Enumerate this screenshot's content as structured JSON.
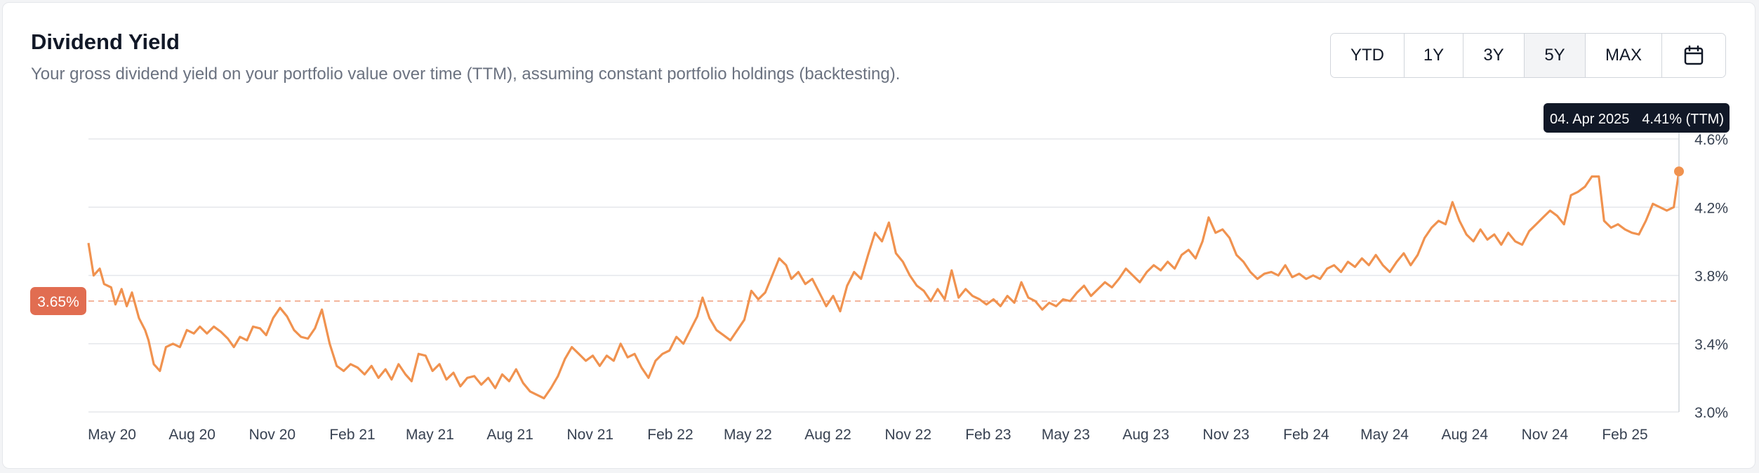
{
  "header": {
    "title": "Dividend Yield",
    "subtitle": "Your gross dividend yield on your portfolio value over time (TTM), assuming constant portfolio holdings (backtesting)."
  },
  "range_buttons": [
    {
      "label": "YTD",
      "active": false
    },
    {
      "label": "1Y",
      "active": false
    },
    {
      "label": "3Y",
      "active": false
    },
    {
      "label": "5Y",
      "active": true
    },
    {
      "label": "MAX",
      "active": false
    }
  ],
  "calendar_icon": "calendar-icon",
  "tooltip": {
    "date": "04. Apr 2025",
    "value": "4.41% (TTM)"
  },
  "average_badge": "3.65%",
  "colors": {
    "line": "#f0924f",
    "badge": "#e16d51",
    "tooltip_bg": "#111827",
    "grid": "#e5e7eb"
  },
  "chart_data": {
    "type": "line",
    "title": "Dividend Yield",
    "ylim": [
      3.0,
      4.6
    ],
    "y_ticks": [
      "3.0%",
      "3.4%",
      "3.8%",
      "4.2%",
      "4.6%"
    ],
    "y_tick_values": [
      3.0,
      3.4,
      3.8,
      4.2,
      4.6
    ],
    "x_range": [
      "2020-04-04",
      "2025-04-04"
    ],
    "x_ticks": [
      {
        "date": "2020-05-01",
        "label": "May 20"
      },
      {
        "date": "2020-08-01",
        "label": "Aug 20"
      },
      {
        "date": "2020-11-01",
        "label": "Nov 20"
      },
      {
        "date": "2021-02-01",
        "label": "Feb 21"
      },
      {
        "date": "2021-05-01",
        "label": "May 21"
      },
      {
        "date": "2021-08-01",
        "label": "Aug 21"
      },
      {
        "date": "2021-11-01",
        "label": "Nov 21"
      },
      {
        "date": "2022-02-01",
        "label": "Feb 22"
      },
      {
        "date": "2022-05-01",
        "label": "May 22"
      },
      {
        "date": "2022-08-01",
        "label": "Aug 22"
      },
      {
        "date": "2022-11-01",
        "label": "Nov 22"
      },
      {
        "date": "2023-02-01",
        "label": "Feb 23"
      },
      {
        "date": "2023-05-01",
        "label": "May 23"
      },
      {
        "date": "2023-08-01",
        "label": "Aug 23"
      },
      {
        "date": "2023-11-01",
        "label": "Nov 23"
      },
      {
        "date": "2024-02-01",
        "label": "Feb 24"
      },
      {
        "date": "2024-05-01",
        "label": "May 24"
      },
      {
        "date": "2024-08-01",
        "label": "Aug 24"
      },
      {
        "date": "2024-11-01",
        "label": "Nov 24"
      },
      {
        "date": "2025-02-01",
        "label": "Feb 25"
      }
    ],
    "average": 3.65,
    "series": [
      {
        "values": [
          [
            "2020-04-04",
            3.99
          ],
          [
            "2020-04-10",
            3.8
          ],
          [
            "2020-04-17",
            3.84
          ],
          [
            "2020-04-22",
            3.75
          ],
          [
            "2020-04-30",
            3.73
          ],
          [
            "2020-05-05",
            3.63
          ],
          [
            "2020-05-12",
            3.72
          ],
          [
            "2020-05-18",
            3.62
          ],
          [
            "2020-05-24",
            3.7
          ],
          [
            "2020-06-01",
            3.55
          ],
          [
            "2020-06-08",
            3.48
          ],
          [
            "2020-06-12",
            3.42
          ],
          [
            "2020-06-18",
            3.28
          ],
          [
            "2020-06-25",
            3.24
          ],
          [
            "2020-07-02",
            3.38
          ],
          [
            "2020-07-10",
            3.4
          ],
          [
            "2020-07-18",
            3.38
          ],
          [
            "2020-07-26",
            3.48
          ],
          [
            "2020-08-03",
            3.46
          ],
          [
            "2020-08-10",
            3.5
          ],
          [
            "2020-08-18",
            3.46
          ],
          [
            "2020-08-26",
            3.5
          ],
          [
            "2020-09-03",
            3.47
          ],
          [
            "2020-09-11",
            3.43
          ],
          [
            "2020-09-18",
            3.38
          ],
          [
            "2020-09-25",
            3.44
          ],
          [
            "2020-10-03",
            3.42
          ],
          [
            "2020-10-10",
            3.5
          ],
          [
            "2020-10-18",
            3.49
          ],
          [
            "2020-10-25",
            3.45
          ],
          [
            "2020-11-02",
            3.55
          ],
          [
            "2020-11-10",
            3.61
          ],
          [
            "2020-11-18",
            3.56
          ],
          [
            "2020-11-26",
            3.48
          ],
          [
            "2020-12-04",
            3.44
          ],
          [
            "2020-12-12",
            3.43
          ],
          [
            "2020-12-20",
            3.49
          ],
          [
            "2020-12-28",
            3.6
          ],
          [
            "2021-01-06",
            3.4
          ],
          [
            "2021-01-14",
            3.27
          ],
          [
            "2021-01-22",
            3.24
          ],
          [
            "2021-01-30",
            3.28
          ],
          [
            "2021-02-07",
            3.26
          ],
          [
            "2021-02-15",
            3.22
          ],
          [
            "2021-02-23",
            3.27
          ],
          [
            "2021-03-03",
            3.2
          ],
          [
            "2021-03-11",
            3.25
          ],
          [
            "2021-03-18",
            3.19
          ],
          [
            "2021-03-26",
            3.28
          ],
          [
            "2021-04-03",
            3.22
          ],
          [
            "2021-04-10",
            3.18
          ],
          [
            "2021-04-18",
            3.34
          ],
          [
            "2021-04-26",
            3.33
          ],
          [
            "2021-05-04",
            3.24
          ],
          [
            "2021-05-12",
            3.28
          ],
          [
            "2021-05-20",
            3.19
          ],
          [
            "2021-05-28",
            3.23
          ],
          [
            "2021-06-05",
            3.15
          ],
          [
            "2021-06-13",
            3.2
          ],
          [
            "2021-06-21",
            3.21
          ],
          [
            "2021-06-29",
            3.16
          ],
          [
            "2021-07-07",
            3.2
          ],
          [
            "2021-07-15",
            3.14
          ],
          [
            "2021-07-23",
            3.22
          ],
          [
            "2021-07-31",
            3.18
          ],
          [
            "2021-08-08",
            3.25
          ],
          [
            "2021-08-16",
            3.17
          ],
          [
            "2021-08-24",
            3.12
          ],
          [
            "2021-09-01",
            3.1
          ],
          [
            "2021-09-09",
            3.08
          ],
          [
            "2021-09-17",
            3.14
          ],
          [
            "2021-09-25",
            3.21
          ],
          [
            "2021-10-03",
            3.31
          ],
          [
            "2021-10-11",
            3.38
          ],
          [
            "2021-10-19",
            3.34
          ],
          [
            "2021-10-27",
            3.3
          ],
          [
            "2021-11-04",
            3.33
          ],
          [
            "2021-11-12",
            3.27
          ],
          [
            "2021-11-20",
            3.33
          ],
          [
            "2021-11-28",
            3.3
          ],
          [
            "2021-12-06",
            3.4
          ],
          [
            "2021-12-14",
            3.32
          ],
          [
            "2021-12-22",
            3.34
          ],
          [
            "2021-12-30",
            3.26
          ],
          [
            "2022-01-07",
            3.2
          ],
          [
            "2022-01-15",
            3.3
          ],
          [
            "2022-01-23",
            3.34
          ],
          [
            "2022-01-31",
            3.36
          ],
          [
            "2022-02-08",
            3.44
          ],
          [
            "2022-02-16",
            3.4
          ],
          [
            "2022-02-24",
            3.48
          ],
          [
            "2022-03-04",
            3.56
          ],
          [
            "2022-03-10",
            3.67
          ],
          [
            "2022-03-18",
            3.55
          ],
          [
            "2022-03-26",
            3.48
          ],
          [
            "2022-04-03",
            3.45
          ],
          [
            "2022-04-11",
            3.42
          ],
          [
            "2022-04-19",
            3.48
          ],
          [
            "2022-04-27",
            3.54
          ],
          [
            "2022-05-05",
            3.71
          ],
          [
            "2022-05-13",
            3.66
          ],
          [
            "2022-05-21",
            3.7
          ],
          [
            "2022-05-29",
            3.8
          ],
          [
            "2022-06-06",
            3.9
          ],
          [
            "2022-06-14",
            3.86
          ],
          [
            "2022-06-20",
            3.78
          ],
          [
            "2022-06-28",
            3.82
          ],
          [
            "2022-07-06",
            3.75
          ],
          [
            "2022-07-14",
            3.78
          ],
          [
            "2022-07-22",
            3.7
          ],
          [
            "2022-07-30",
            3.62
          ],
          [
            "2022-08-07",
            3.68
          ],
          [
            "2022-08-15",
            3.59
          ],
          [
            "2022-08-23",
            3.74
          ],
          [
            "2022-08-31",
            3.82
          ],
          [
            "2022-09-08",
            3.78
          ],
          [
            "2022-09-16",
            3.92
          ],
          [
            "2022-09-24",
            4.05
          ],
          [
            "2022-10-02",
            4.0
          ],
          [
            "2022-10-10",
            4.11
          ],
          [
            "2022-10-18",
            3.93
          ],
          [
            "2022-10-26",
            3.88
          ],
          [
            "2022-11-03",
            3.8
          ],
          [
            "2022-11-11",
            3.74
          ],
          [
            "2022-11-19",
            3.71
          ],
          [
            "2022-11-27",
            3.65
          ],
          [
            "2022-12-05",
            3.72
          ],
          [
            "2022-12-13",
            3.66
          ],
          [
            "2022-12-21",
            3.83
          ],
          [
            "2022-12-29",
            3.67
          ],
          [
            "2023-01-06",
            3.72
          ],
          [
            "2023-01-14",
            3.68
          ],
          [
            "2023-01-22",
            3.66
          ],
          [
            "2023-01-30",
            3.63
          ],
          [
            "2023-02-07",
            3.66
          ],
          [
            "2023-02-15",
            3.62
          ],
          [
            "2023-02-23",
            3.68
          ],
          [
            "2023-03-03",
            3.64
          ],
          [
            "2023-03-11",
            3.76
          ],
          [
            "2023-03-19",
            3.67
          ],
          [
            "2023-03-27",
            3.65
          ],
          [
            "2023-04-04",
            3.6
          ],
          [
            "2023-04-12",
            3.64
          ],
          [
            "2023-04-20",
            3.62
          ],
          [
            "2023-04-28",
            3.66
          ],
          [
            "2023-05-06",
            3.65
          ],
          [
            "2023-05-14",
            3.7
          ],
          [
            "2023-05-22",
            3.74
          ],
          [
            "2023-05-30",
            3.68
          ],
          [
            "2023-06-07",
            3.72
          ],
          [
            "2023-06-15",
            3.76
          ],
          [
            "2023-06-23",
            3.73
          ],
          [
            "2023-07-01",
            3.78
          ],
          [
            "2023-07-09",
            3.84
          ],
          [
            "2023-07-17",
            3.8
          ],
          [
            "2023-07-25",
            3.76
          ],
          [
            "2023-08-02",
            3.82
          ],
          [
            "2023-08-10",
            3.86
          ],
          [
            "2023-08-18",
            3.83
          ],
          [
            "2023-08-26",
            3.88
          ],
          [
            "2023-09-03",
            3.84
          ],
          [
            "2023-09-11",
            3.92
          ],
          [
            "2023-09-19",
            3.95
          ],
          [
            "2023-09-27",
            3.9
          ],
          [
            "2023-10-05",
            4.0
          ],
          [
            "2023-10-12",
            4.14
          ],
          [
            "2023-10-20",
            4.05
          ],
          [
            "2023-10-28",
            4.07
          ],
          [
            "2023-11-05",
            4.02
          ],
          [
            "2023-11-13",
            3.92
          ],
          [
            "2023-11-21",
            3.88
          ],
          [
            "2023-11-29",
            3.82
          ],
          [
            "2023-12-07",
            3.78
          ],
          [
            "2023-12-15",
            3.81
          ],
          [
            "2023-12-23",
            3.82
          ],
          [
            "2023-12-31",
            3.8
          ],
          [
            "2024-01-08",
            3.86
          ],
          [
            "2024-01-16",
            3.79
          ],
          [
            "2024-01-24",
            3.81
          ],
          [
            "2024-02-01",
            3.78
          ],
          [
            "2024-02-09",
            3.8
          ],
          [
            "2024-02-17",
            3.78
          ],
          [
            "2024-02-25",
            3.84
          ],
          [
            "2024-03-04",
            3.86
          ],
          [
            "2024-03-12",
            3.82
          ],
          [
            "2024-03-20",
            3.88
          ],
          [
            "2024-03-28",
            3.85
          ],
          [
            "2024-04-05",
            3.9
          ],
          [
            "2024-04-13",
            3.86
          ],
          [
            "2024-04-21",
            3.92
          ],
          [
            "2024-04-29",
            3.86
          ],
          [
            "2024-05-07",
            3.82
          ],
          [
            "2024-05-15",
            3.88
          ],
          [
            "2024-05-23",
            3.93
          ],
          [
            "2024-05-31",
            3.86
          ],
          [
            "2024-06-08",
            3.92
          ],
          [
            "2024-06-16",
            4.02
          ],
          [
            "2024-06-24",
            4.08
          ],
          [
            "2024-07-02",
            4.12
          ],
          [
            "2024-07-10",
            4.1
          ],
          [
            "2024-07-18",
            4.23
          ],
          [
            "2024-07-26",
            4.12
          ],
          [
            "2024-08-03",
            4.04
          ],
          [
            "2024-08-11",
            4.0
          ],
          [
            "2024-08-19",
            4.07
          ],
          [
            "2024-08-27",
            4.01
          ],
          [
            "2024-09-04",
            4.04
          ],
          [
            "2024-09-12",
            3.98
          ],
          [
            "2024-09-20",
            4.05
          ],
          [
            "2024-09-28",
            4.0
          ],
          [
            "2024-10-06",
            3.98
          ],
          [
            "2024-10-14",
            4.06
          ],
          [
            "2024-10-22",
            4.1
          ],
          [
            "2024-10-30",
            4.14
          ],
          [
            "2024-11-07",
            4.18
          ],
          [
            "2024-11-15",
            4.15
          ],
          [
            "2024-11-23",
            4.1
          ],
          [
            "2024-12-01",
            4.27
          ],
          [
            "2024-12-09",
            4.29
          ],
          [
            "2024-12-17",
            4.32
          ],
          [
            "2024-12-25",
            4.38
          ],
          [
            "2025-01-02",
            4.38
          ],
          [
            "2025-01-08",
            4.12
          ],
          [
            "2025-01-16",
            4.08
          ],
          [
            "2025-01-24",
            4.1
          ],
          [
            "2025-02-01",
            4.07
          ],
          [
            "2025-02-09",
            4.05
          ],
          [
            "2025-02-17",
            4.04
          ],
          [
            "2025-02-25",
            4.12
          ],
          [
            "2025-03-05",
            4.22
          ],
          [
            "2025-03-13",
            4.2
          ],
          [
            "2025-03-21",
            4.18
          ],
          [
            "2025-03-29",
            4.2
          ],
          [
            "2025-04-04",
            4.41
          ]
        ]
      }
    ]
  }
}
